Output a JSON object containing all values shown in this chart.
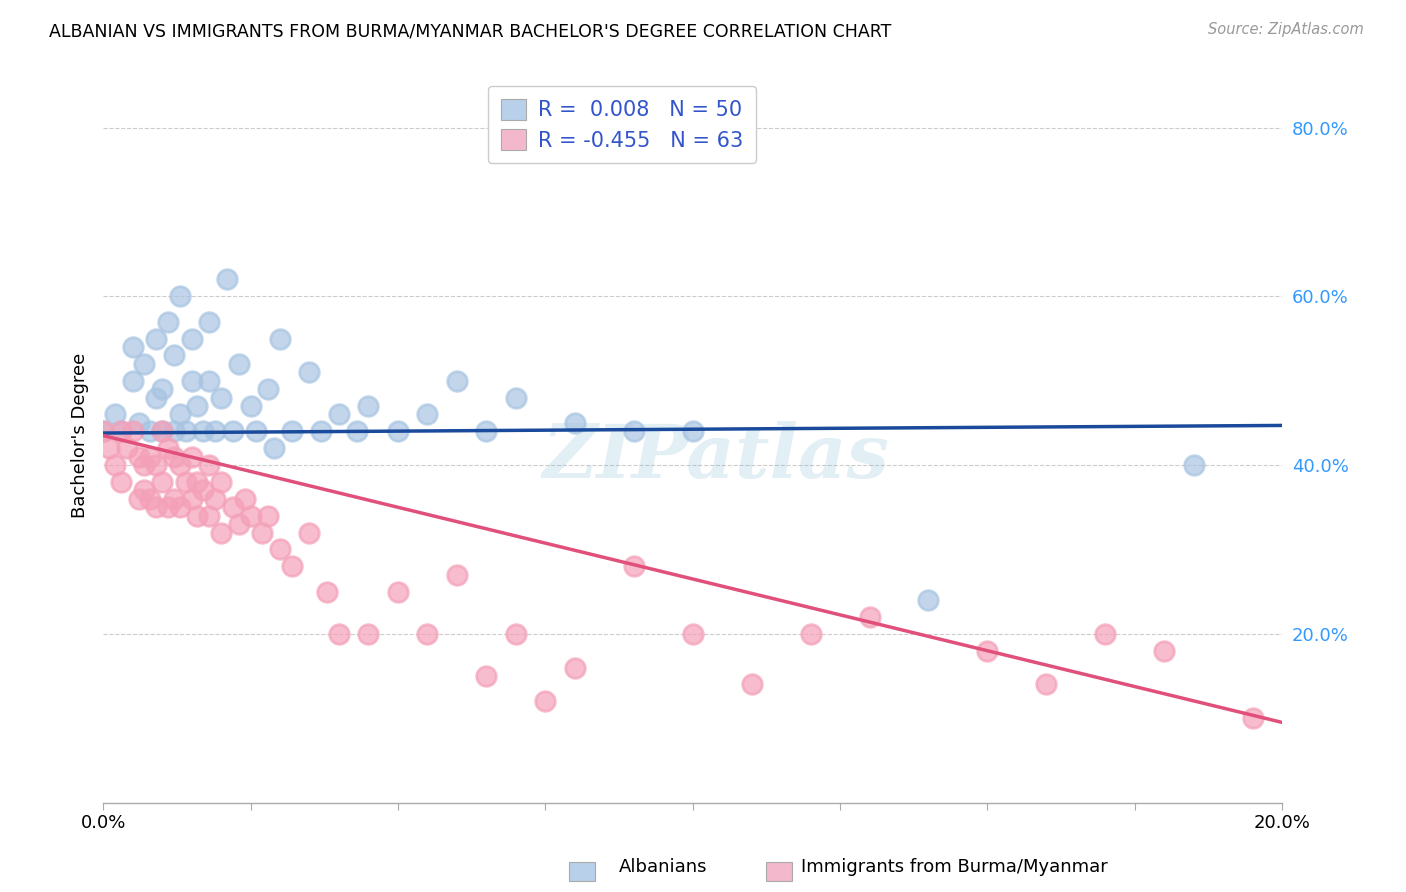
{
  "title": "ALBANIAN VS IMMIGRANTS FROM BURMA/MYANMAR BACHELOR'S DEGREE CORRELATION CHART",
  "source": "Source: ZipAtlas.com",
  "ylabel": "Bachelor's Degree",
  "r_blue": "0.008",
  "n_blue": "50",
  "r_pink": "-0.455",
  "n_pink": "63",
  "xlim": [
    0.0,
    0.2
  ],
  "ylim": [
    0.0,
    0.87
  ],
  "yticks": [
    0.2,
    0.4,
    0.6,
    0.8
  ],
  "ytick_labels": [
    "20.0%",
    "40.0%",
    "60.0%",
    "80.0%"
  ],
  "blue_scatter_color": "#a8c4e2",
  "blue_line_color": "#1a4a9c",
  "pink_scatter_color": "#f4a0b8",
  "pink_line_color": "#e0507a",
  "legend_blue_color": "#b8d0ea",
  "legend_pink_color": "#f4b8cc",
  "watermark": "ZIPatlas",
  "blue_line_x0": 0.0,
  "blue_line_y0": 0.438,
  "blue_line_x1": 0.2,
  "blue_line_y1": 0.447,
  "pink_line_x0": 0.0,
  "pink_line_y0": 0.435,
  "pink_line_x1": 0.2,
  "pink_line_y1": 0.095,
  "blue_scatter_x": [
    0.0,
    0.002,
    0.003,
    0.005,
    0.005,
    0.006,
    0.007,
    0.008,
    0.009,
    0.009,
    0.01,
    0.01,
    0.011,
    0.012,
    0.012,
    0.013,
    0.013,
    0.014,
    0.015,
    0.015,
    0.016,
    0.017,
    0.018,
    0.018,
    0.019,
    0.02,
    0.021,
    0.022,
    0.023,
    0.025,
    0.026,
    0.028,
    0.029,
    0.03,
    0.032,
    0.035,
    0.037,
    0.04,
    0.043,
    0.045,
    0.05,
    0.055,
    0.06,
    0.065,
    0.07,
    0.08,
    0.09,
    0.1,
    0.14,
    0.185
  ],
  "blue_scatter_y": [
    0.44,
    0.46,
    0.44,
    0.5,
    0.54,
    0.45,
    0.52,
    0.44,
    0.48,
    0.55,
    0.44,
    0.49,
    0.57,
    0.44,
    0.53,
    0.46,
    0.6,
    0.44,
    0.5,
    0.55,
    0.47,
    0.44,
    0.5,
    0.57,
    0.44,
    0.48,
    0.62,
    0.44,
    0.52,
    0.47,
    0.44,
    0.49,
    0.42,
    0.55,
    0.44,
    0.51,
    0.44,
    0.46,
    0.44,
    0.47,
    0.44,
    0.46,
    0.5,
    0.44,
    0.48,
    0.45,
    0.44,
    0.44,
    0.24,
    0.4
  ],
  "pink_scatter_x": [
    0.0,
    0.001,
    0.002,
    0.003,
    0.003,
    0.004,
    0.005,
    0.006,
    0.006,
    0.007,
    0.007,
    0.008,
    0.008,
    0.009,
    0.009,
    0.01,
    0.01,
    0.011,
    0.011,
    0.012,
    0.012,
    0.013,
    0.013,
    0.014,
    0.015,
    0.015,
    0.016,
    0.016,
    0.017,
    0.018,
    0.018,
    0.019,
    0.02,
    0.02,
    0.022,
    0.023,
    0.024,
    0.025,
    0.027,
    0.028,
    0.03,
    0.032,
    0.035,
    0.038,
    0.04,
    0.045,
    0.05,
    0.055,
    0.06,
    0.065,
    0.07,
    0.075,
    0.08,
    0.09,
    0.1,
    0.11,
    0.12,
    0.13,
    0.15,
    0.16,
    0.17,
    0.18,
    0.195
  ],
  "pink_scatter_y": [
    0.44,
    0.42,
    0.4,
    0.44,
    0.38,
    0.42,
    0.44,
    0.41,
    0.36,
    0.4,
    0.37,
    0.41,
    0.36,
    0.4,
    0.35,
    0.44,
    0.38,
    0.42,
    0.35,
    0.41,
    0.36,
    0.4,
    0.35,
    0.38,
    0.41,
    0.36,
    0.38,
    0.34,
    0.37,
    0.4,
    0.34,
    0.36,
    0.38,
    0.32,
    0.35,
    0.33,
    0.36,
    0.34,
    0.32,
    0.34,
    0.3,
    0.28,
    0.32,
    0.25,
    0.2,
    0.2,
    0.25,
    0.2,
    0.27,
    0.15,
    0.2,
    0.12,
    0.16,
    0.28,
    0.2,
    0.14,
    0.2,
    0.22,
    0.18,
    0.14,
    0.2,
    0.18,
    0.1
  ]
}
